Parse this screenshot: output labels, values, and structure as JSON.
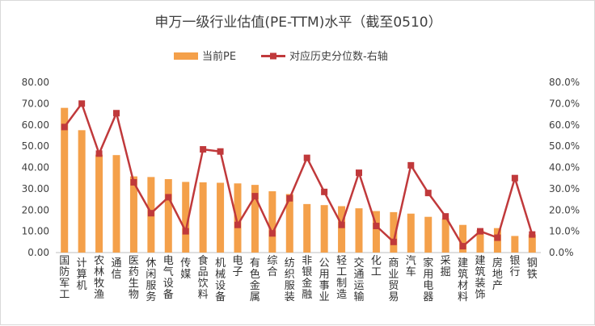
{
  "chart_data": {
    "type": "bar",
    "title": "申万一级行业估值(PE-TTM)水平（截至0510）",
    "categories": [
      "国防军工",
      "计算机",
      "农林牧渔",
      "通信",
      "医药生物",
      "休闲服务",
      "电气设备",
      "传媒",
      "食品饮料",
      "机械设备",
      "电子",
      "有色金属",
      "综合",
      "纺织服装",
      "非银金融",
      "公用事业",
      "轻工制造",
      "交通运输",
      "化工",
      "商业贸易",
      "汽车",
      "家用电器",
      "采掘",
      "建筑材料",
      "建筑装饰",
      "房地产",
      "银行",
      "钢铁"
    ],
    "series": [
      {
        "name": "当前PE",
        "type": "bar",
        "axis": "left",
        "color": "#F4A04A",
        "values": [
          68.0,
          57.5,
          46.0,
          45.8,
          35.8,
          35.5,
          34.5,
          33.2,
          33.0,
          32.8,
          32.5,
          31.8,
          28.8,
          27.5,
          22.8,
          22.3,
          21.8,
          20.8,
          19.5,
          19.0,
          18.3,
          16.8,
          16.0,
          13.0,
          10.5,
          11.5,
          7.8,
          8.5
        ]
      },
      {
        "name": "对应历史分位数-右轴",
        "type": "line",
        "axis": "right",
        "color": "#C0393B",
        "values": [
          0.59,
          0.7,
          0.465,
          0.655,
          0.33,
          0.185,
          0.26,
          0.1,
          0.485,
          0.475,
          0.13,
          0.265,
          0.09,
          0.255,
          0.445,
          0.285,
          0.13,
          0.375,
          0.125,
          0.05,
          0.41,
          0.28,
          0.17,
          0.03,
          0.1,
          0.07,
          0.35,
          0.085
        ]
      }
    ],
    "y_left": {
      "ylim": [
        0,
        80
      ],
      "ticks": [
        "0.00",
        "10.00",
        "20.00",
        "30.00",
        "40.00",
        "50.00",
        "60.00",
        "70.00",
        "80.00"
      ]
    },
    "y_right": {
      "ylim": [
        0,
        0.8
      ],
      "ticks": [
        "0.0%",
        "10.0%",
        "20.0%",
        "30.0%",
        "40.0%",
        "50.0%",
        "60.0%",
        "70.0%",
        "80.0%"
      ]
    },
    "legend": {
      "position": "top",
      "items": [
        "当前PE",
        "对应历史分位数-右轴"
      ]
    },
    "grid": false
  }
}
